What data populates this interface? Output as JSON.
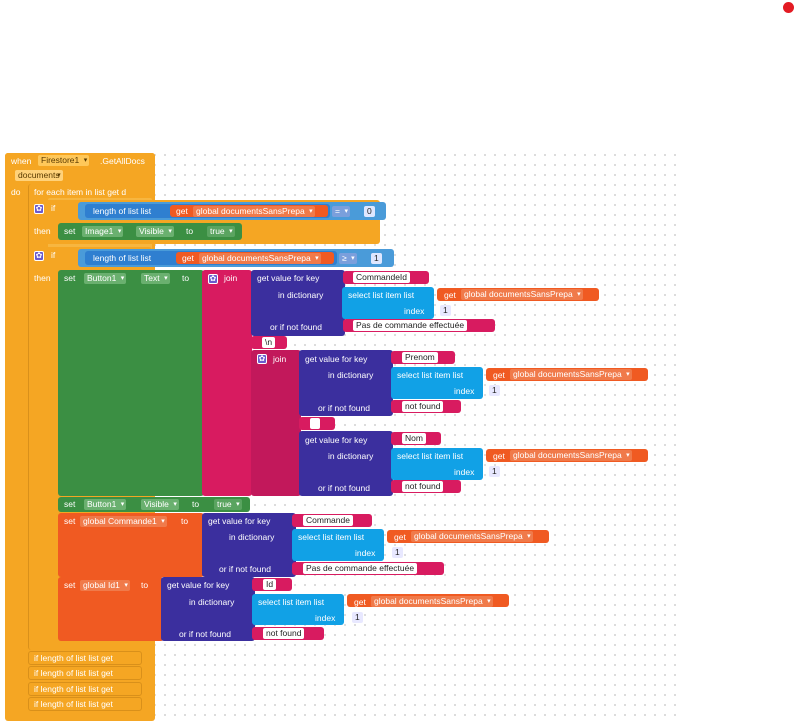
{
  "event": {
    "when": "when",
    "component": "Firestore1",
    "event_name": ".GetAllDocs",
    "param": "documents",
    "do": "do"
  },
  "foreach": {
    "label": "for each item in list get d"
  },
  "if1": {
    "if": "if",
    "length": "length of list list",
    "get": "get",
    "var": "global documentsSansPrepa",
    "op": "=",
    "num": "0",
    "then": "then",
    "set": "set",
    "comp": "Image1",
    "prop": "Visible",
    "to": "to",
    "val": "true"
  },
  "if2": {
    "if": "if",
    "length": "length of list  list",
    "get": "get",
    "var": "global documentsSansPrepa",
    "op": "≥",
    "num": "1",
    "then": "then"
  },
  "setText": {
    "set": "set",
    "comp": "Button1",
    "prop": "Text",
    "to": "to",
    "join": "join",
    "k1": {
      "label": "get value for key",
      "key": "CommandeId",
      "dict": "in dictionary",
      "sel": "select list item  list",
      "get": "get",
      "var": "global documentsSansPrepa",
      "index": "index",
      "num": "1",
      "notfound": "or if not found",
      "nf": "Pas de commande effectuée"
    },
    "nl": "\\n",
    "join2": "join",
    "k2": {
      "label": "get value for key",
      "key": "Prenom",
      "dict": "in dictionary",
      "sel": "select list item  list",
      "get": "get",
      "var": "global documentsSansPrepa",
      "index": "index",
      "num": "1",
      "notfound": "or if not found",
      "nf": "not found"
    },
    "k3": {
      "label": "get value for key",
      "key": "Nom",
      "dict": "in dictionary",
      "sel": "select list item  list",
      "get": "get",
      "var": "global documentsSansPrepa",
      "index": "index",
      "num": "1",
      "notfound": "or if not found",
      "nf": "not found"
    }
  },
  "setVis": {
    "set": "set",
    "comp": "Button1",
    "prop": "Visible",
    "to": "to",
    "val": "true"
  },
  "setCmd": {
    "set": "set",
    "var": "global Commande1",
    "to": "to",
    "label": "get value for key",
    "key": "Commande",
    "dict": "in dictionary",
    "sel": "select list item  list",
    "get": "get",
    "gvar": "global documentsSansPrepa",
    "index": "index",
    "num": "1",
    "notfound": "or if not found",
    "nf": "Pas de commande effectuée"
  },
  "setId": {
    "set": "set",
    "var": "global Id1",
    "to": "to",
    "label": "get value for key",
    "key": "Id",
    "dict": "in dictionary",
    "sel": "select list item  list",
    "get": "get",
    "gvar": "global documentsSansPrepa",
    "index": "index",
    "num": "1",
    "notfound": "or if not found",
    "nf": "not found"
  },
  "collapsed": [
    "if length of list list get",
    "if length of list list get",
    "if length of list list get",
    "if length of list list get"
  ],
  "colors": {
    "event": "#f5a623",
    "control": "#f5a623",
    "list": "#4a9bd9",
    "getvar": "#f05a22",
    "setprop": "#3b8f43",
    "text": "#d81b60",
    "dict": "#3b2f9e"
  }
}
